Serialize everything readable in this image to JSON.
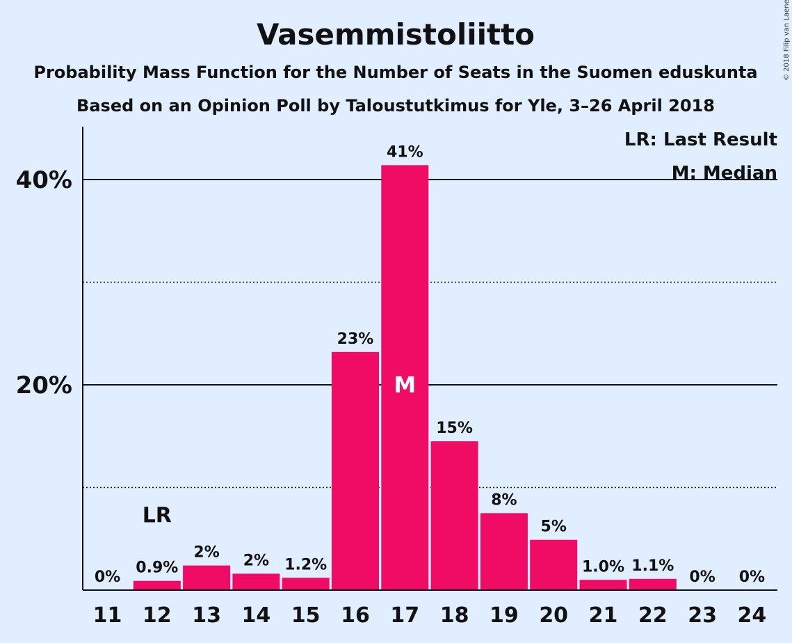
{
  "copyright": "© 2018 Filip van Laenen",
  "legend": {
    "lr": "LR: Last Result",
    "median": "M: Median"
  },
  "chart_data": {
    "type": "bar",
    "title": "Vasemmistoliitto",
    "subtitle_1": "Probability Mass Function for the Number of Seats in the Suomen eduskunta",
    "subtitle_2": "Based on an Opinion Poll by Taloustutkimus for Yle, 3–26 April 2018",
    "categories": [
      "11",
      "12",
      "13",
      "14",
      "15",
      "16",
      "17",
      "18",
      "19",
      "20",
      "21",
      "22",
      "23",
      "24"
    ],
    "values": [
      0,
      0.9,
      2.4,
      1.6,
      1.2,
      23.2,
      41.4,
      14.5,
      7.5,
      4.9,
      1.0,
      1.1,
      0,
      0
    ],
    "value_labels": [
      "0%",
      "0.9%",
      "2%",
      "2%",
      "1.2%",
      "23%",
      "41%",
      "15%",
      "8%",
      "5%",
      "1.0%",
      "1.1%",
      "0%",
      "0%"
    ],
    "ylim": [
      0,
      45
    ],
    "yticks": [
      20,
      40
    ],
    "ytick_labels": [
      "20%",
      "40%"
    ],
    "minor_gridlines": [
      10,
      30
    ],
    "last_result": {
      "category": "12",
      "label": "LR"
    },
    "median": {
      "category": "17",
      "label": "M"
    },
    "bar_color": "#f00c64",
    "background": "#e0eeff"
  }
}
